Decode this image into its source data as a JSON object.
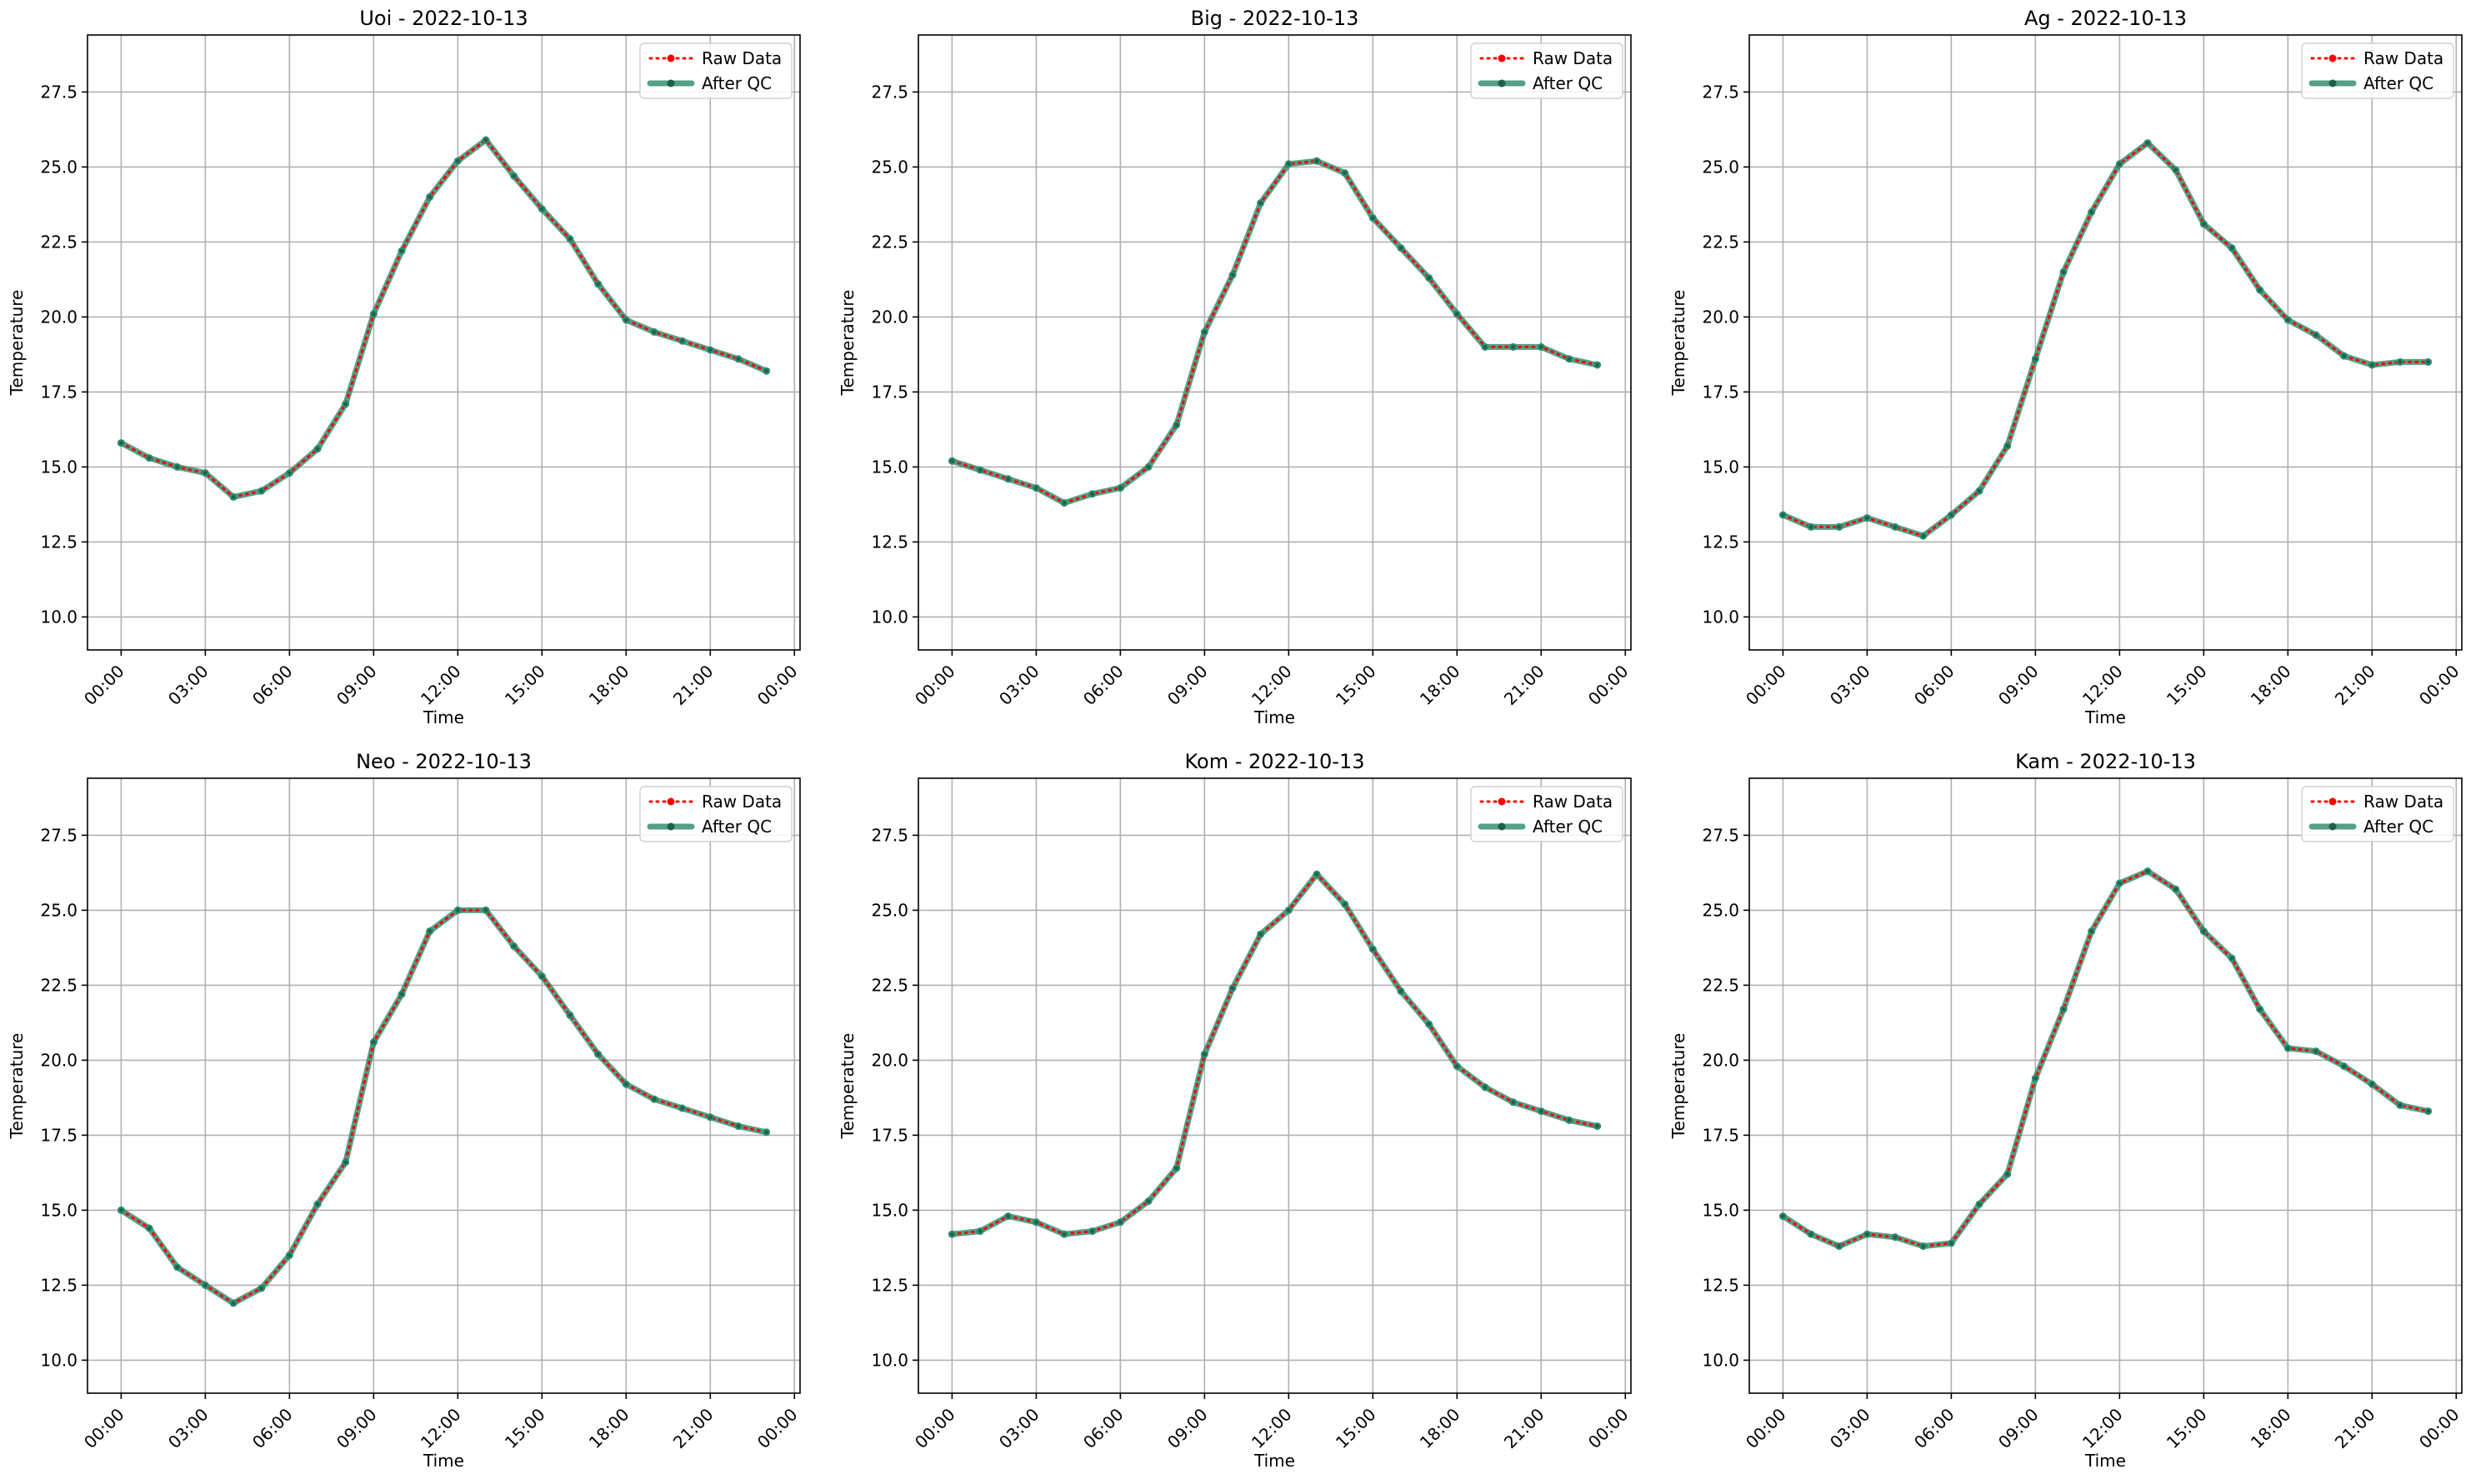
{
  "figure": {
    "panels": [
      "Uoi",
      "Big",
      "Ag",
      "Neo",
      "Kom",
      "Kam"
    ]
  },
  "colors": {
    "raw": "#ff0000",
    "after_qc": "#2e8b6e",
    "after_qc_alpha": 0.82,
    "grid": "#b0b0b0",
    "axes": "#000000"
  },
  "chart_data": [
    {
      "type": "line",
      "title": "Uoi - 2022-10-13",
      "xlabel": "Time",
      "ylabel": "Temperature",
      "x_ticks": [
        "00:00",
        "03:00",
        "06:00",
        "09:00",
        "12:00",
        "15:00",
        "18:00",
        "21:00",
        "00:00"
      ],
      "y_ticks": [
        "10.0",
        "12.5",
        "15.0",
        "17.5",
        "20.0",
        "22.5",
        "25.0",
        "27.5"
      ],
      "xlim_hours": [
        -1.2,
        24.2
      ],
      "ylim": [
        8.9,
        29.4
      ],
      "grid": true,
      "legend_position": "top-right",
      "x": [
        "00:00",
        "01:00",
        "02:00",
        "03:00",
        "04:00",
        "05:00",
        "06:00",
        "07:00",
        "08:00",
        "09:00",
        "10:00",
        "11:00",
        "12:00",
        "13:00",
        "14:00",
        "15:00",
        "16:00",
        "17:00",
        "18:00",
        "19:00",
        "20:00",
        "21:00",
        "22:00",
        "23:00"
      ],
      "series": [
        {
          "name": "Raw Data",
          "values": [
            15.8,
            15.3,
            15.0,
            14.8,
            14.0,
            14.2,
            14.8,
            15.6,
            17.1,
            20.1,
            22.2,
            24.0,
            25.2,
            25.9,
            24.7,
            23.6,
            22.6,
            21.1,
            19.9,
            19.5,
            19.2,
            18.9,
            18.6,
            18.2
          ]
        },
        {
          "name": "After QC",
          "values": [
            15.8,
            15.3,
            15.0,
            14.8,
            14.0,
            14.2,
            14.8,
            15.6,
            17.1,
            20.1,
            22.2,
            24.0,
            25.2,
            25.9,
            24.7,
            23.6,
            22.6,
            21.1,
            19.9,
            19.5,
            19.2,
            18.9,
            18.6,
            18.2
          ]
        }
      ]
    },
    {
      "type": "line",
      "title": "Big - 2022-10-13",
      "xlabel": "Time",
      "ylabel": "Temperature",
      "x_ticks": [
        "00:00",
        "03:00",
        "06:00",
        "09:00",
        "12:00",
        "15:00",
        "18:00",
        "21:00",
        "00:00"
      ],
      "y_ticks": [
        "10.0",
        "12.5",
        "15.0",
        "17.5",
        "20.0",
        "22.5",
        "25.0",
        "27.5"
      ],
      "xlim_hours": [
        -1.2,
        24.2
      ],
      "ylim": [
        8.9,
        29.4
      ],
      "grid": true,
      "legend_position": "top-right",
      "x": [
        "00:00",
        "01:00",
        "02:00",
        "03:00",
        "04:00",
        "05:00",
        "06:00",
        "07:00",
        "08:00",
        "09:00",
        "10:00",
        "11:00",
        "12:00",
        "13:00",
        "14:00",
        "15:00",
        "16:00",
        "17:00",
        "18:00",
        "19:00",
        "20:00",
        "21:00",
        "22:00",
        "23:00"
      ],
      "series": [
        {
          "name": "Raw Data",
          "values": [
            15.2,
            14.9,
            14.6,
            14.3,
            13.8,
            14.1,
            14.3,
            15.0,
            16.4,
            19.5,
            21.4,
            23.8,
            25.1,
            25.2,
            24.8,
            23.3,
            22.3,
            21.3,
            20.1,
            19.0,
            19.0,
            19.0,
            18.6,
            18.4
          ]
        },
        {
          "name": "After QC",
          "values": [
            15.2,
            14.9,
            14.6,
            14.3,
            13.8,
            14.1,
            14.3,
            15.0,
            16.4,
            19.5,
            21.4,
            23.8,
            25.1,
            25.2,
            24.8,
            23.3,
            22.3,
            21.3,
            20.1,
            19.0,
            19.0,
            19.0,
            18.6,
            18.4
          ]
        }
      ]
    },
    {
      "type": "line",
      "title": "Ag - 2022-10-13",
      "xlabel": "Time",
      "ylabel": "Temperature",
      "x_ticks": [
        "00:00",
        "03:00",
        "06:00",
        "09:00",
        "12:00",
        "15:00",
        "18:00",
        "21:00",
        "00:00"
      ],
      "y_ticks": [
        "10.0",
        "12.5",
        "15.0",
        "17.5",
        "20.0",
        "22.5",
        "25.0",
        "27.5"
      ],
      "xlim_hours": [
        -1.2,
        24.2
      ],
      "ylim": [
        8.9,
        29.4
      ],
      "grid": true,
      "legend_position": "top-right",
      "x": [
        "00:00",
        "01:00",
        "02:00",
        "03:00",
        "04:00",
        "05:00",
        "06:00",
        "07:00",
        "08:00",
        "09:00",
        "10:00",
        "11:00",
        "12:00",
        "13:00",
        "14:00",
        "15:00",
        "16:00",
        "17:00",
        "18:00",
        "19:00",
        "20:00",
        "21:00",
        "22:00",
        "23:00"
      ],
      "series": [
        {
          "name": "Raw Data",
          "values": [
            13.4,
            13.0,
            13.0,
            13.3,
            13.0,
            12.7,
            13.4,
            14.2,
            15.7,
            18.6,
            21.5,
            23.5,
            25.1,
            25.8,
            24.9,
            23.1,
            22.3,
            20.9,
            19.9,
            19.4,
            18.7,
            18.4,
            18.5,
            18.5
          ]
        },
        {
          "name": "After QC",
          "values": [
            13.4,
            13.0,
            13.0,
            13.3,
            13.0,
            12.7,
            13.4,
            14.2,
            15.7,
            18.6,
            21.5,
            23.5,
            25.1,
            25.8,
            24.9,
            23.1,
            22.3,
            20.9,
            19.9,
            19.4,
            18.7,
            18.4,
            18.5,
            18.5
          ]
        }
      ]
    },
    {
      "type": "line",
      "title": "Neo - 2022-10-13",
      "xlabel": "Time",
      "ylabel": "Temperature",
      "x_ticks": [
        "00:00",
        "03:00",
        "06:00",
        "09:00",
        "12:00",
        "15:00",
        "18:00",
        "21:00",
        "00:00"
      ],
      "y_ticks": [
        "10.0",
        "12.5",
        "15.0",
        "17.5",
        "20.0",
        "22.5",
        "25.0",
        "27.5"
      ],
      "xlim_hours": [
        -1.2,
        24.2
      ],
      "ylim": [
        8.9,
        29.4
      ],
      "grid": true,
      "legend_position": "top-right",
      "x": [
        "00:00",
        "01:00",
        "02:00",
        "03:00",
        "04:00",
        "05:00",
        "06:00",
        "07:00",
        "08:00",
        "09:00",
        "10:00",
        "11:00",
        "12:00",
        "13:00",
        "14:00",
        "15:00",
        "16:00",
        "17:00",
        "18:00",
        "19:00",
        "20:00",
        "21:00",
        "22:00",
        "23:00"
      ],
      "series": [
        {
          "name": "Raw Data",
          "values": [
            15.0,
            14.4,
            13.1,
            12.5,
            11.9,
            12.4,
            13.5,
            15.2,
            16.6,
            20.6,
            22.2,
            24.3,
            25.0,
            25.0,
            23.8,
            22.8,
            21.5,
            20.2,
            19.2,
            18.7,
            18.4,
            18.1,
            17.8,
            17.6
          ]
        },
        {
          "name": "After QC",
          "values": [
            15.0,
            14.4,
            13.1,
            12.5,
            11.9,
            12.4,
            13.5,
            15.2,
            16.6,
            20.6,
            22.2,
            24.3,
            25.0,
            25.0,
            23.8,
            22.8,
            21.5,
            20.2,
            19.2,
            18.7,
            18.4,
            18.1,
            17.8,
            17.6
          ]
        }
      ]
    },
    {
      "type": "line",
      "title": "Kom - 2022-10-13",
      "xlabel": "Time",
      "ylabel": "Temperature",
      "x_ticks": [
        "00:00",
        "03:00",
        "06:00",
        "09:00",
        "12:00",
        "15:00",
        "18:00",
        "21:00",
        "00:00"
      ],
      "y_ticks": [
        "10.0",
        "12.5",
        "15.0",
        "17.5",
        "20.0",
        "22.5",
        "25.0",
        "27.5"
      ],
      "xlim_hours": [
        -1.2,
        24.2
      ],
      "ylim": [
        8.9,
        29.4
      ],
      "grid": true,
      "legend_position": "top-right",
      "x": [
        "00:00",
        "01:00",
        "02:00",
        "03:00",
        "04:00",
        "05:00",
        "06:00",
        "07:00",
        "08:00",
        "09:00",
        "10:00",
        "11:00",
        "12:00",
        "13:00",
        "14:00",
        "15:00",
        "16:00",
        "17:00",
        "18:00",
        "19:00",
        "20:00",
        "21:00",
        "22:00",
        "23:00"
      ],
      "series": [
        {
          "name": "Raw Data",
          "values": [
            14.2,
            14.3,
            14.8,
            14.6,
            14.2,
            14.3,
            14.6,
            15.3,
            16.4,
            20.2,
            22.4,
            24.2,
            25.0,
            26.2,
            25.2,
            23.7,
            22.3,
            21.2,
            19.8,
            19.1,
            18.6,
            18.3,
            18.0,
            17.8
          ]
        },
        {
          "name": "After QC",
          "values": [
            14.2,
            14.3,
            14.8,
            14.6,
            14.2,
            14.3,
            14.6,
            15.3,
            16.4,
            20.2,
            22.4,
            24.2,
            25.0,
            26.2,
            25.2,
            23.7,
            22.3,
            21.2,
            19.8,
            19.1,
            18.6,
            18.3,
            18.0,
            17.8
          ]
        }
      ]
    },
    {
      "type": "line",
      "title": "Kam - 2022-10-13",
      "xlabel": "Time",
      "ylabel": "Temperature",
      "x_ticks": [
        "00:00",
        "03:00",
        "06:00",
        "09:00",
        "12:00",
        "15:00",
        "18:00",
        "21:00",
        "00:00"
      ],
      "y_ticks": [
        "10.0",
        "12.5",
        "15.0",
        "17.5",
        "20.0",
        "22.5",
        "25.0",
        "27.5"
      ],
      "xlim_hours": [
        -1.2,
        24.2
      ],
      "ylim": [
        8.9,
        29.4
      ],
      "grid": true,
      "legend_position": "top-right",
      "x": [
        "00:00",
        "01:00",
        "02:00",
        "03:00",
        "04:00",
        "05:00",
        "06:00",
        "07:00",
        "08:00",
        "09:00",
        "10:00",
        "11:00",
        "12:00",
        "13:00",
        "14:00",
        "15:00",
        "16:00",
        "17:00",
        "18:00",
        "19:00",
        "20:00",
        "21:00",
        "22:00",
        "23:00"
      ],
      "series": [
        {
          "name": "Raw Data",
          "values": [
            14.8,
            14.2,
            13.8,
            14.2,
            14.1,
            13.8,
            13.9,
            15.2,
            16.2,
            19.4,
            21.7,
            24.3,
            25.9,
            26.3,
            25.7,
            24.3,
            23.4,
            21.7,
            20.4,
            20.3,
            19.8,
            19.2,
            18.5,
            18.3
          ]
        },
        {
          "name": "After QC",
          "values": [
            14.8,
            14.2,
            13.8,
            14.2,
            14.1,
            13.8,
            13.9,
            15.2,
            16.2,
            19.4,
            21.7,
            24.3,
            25.9,
            26.3,
            25.7,
            24.3,
            23.4,
            21.7,
            20.4,
            20.3,
            19.8,
            19.2,
            18.5,
            18.3
          ]
        }
      ]
    }
  ]
}
